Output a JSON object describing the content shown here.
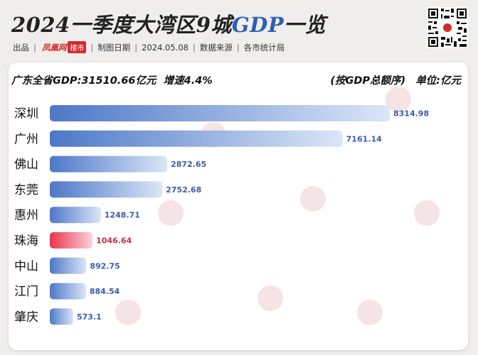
{
  "header": {
    "title_pre": "2024一季度大湾区9城",
    "title_hl": "GDP",
    "title_post": "一览",
    "source_prefix": "出品",
    "brand": "凤凰网",
    "brand_sub": "楼市",
    "date_label": "制图日期",
    "date": "2024.05.08",
    "source_label": "数据来源",
    "source": "各市统计局"
  },
  "summary": {
    "province": "广东全省GDP:31510.66亿元",
    "growth": "增速4.4%",
    "sort_note": "(按GDP总额序)",
    "unit": "单位:亿元"
  },
  "colors": {
    "bar_start": "#4c78c8",
    "bar_end": "#dbe6f7",
    "highlight_start": "#e8344f",
    "highlight_end": "#fbd3da"
  },
  "chart_data": {
    "type": "bar",
    "orientation": "horizontal",
    "categories": [
      "深圳",
      "广州",
      "佛山",
      "东莞",
      "惠州",
      "珠海",
      "中山",
      "江门",
      "肇庆"
    ],
    "values": [
      8314.98,
      7161.14,
      2872.65,
      2752.68,
      1248.71,
      1046.64,
      892.75,
      884.54,
      573.1
    ],
    "value_labels": [
      "8314.98",
      "7161.14",
      "2872.65",
      "2752.68",
      "1248.71",
      "1046.64",
      "892.75",
      "884.54",
      "573.1"
    ],
    "highlight": "珠海",
    "xlim": [
      0,
      8314.98
    ],
    "grid": false,
    "legend": "none"
  }
}
